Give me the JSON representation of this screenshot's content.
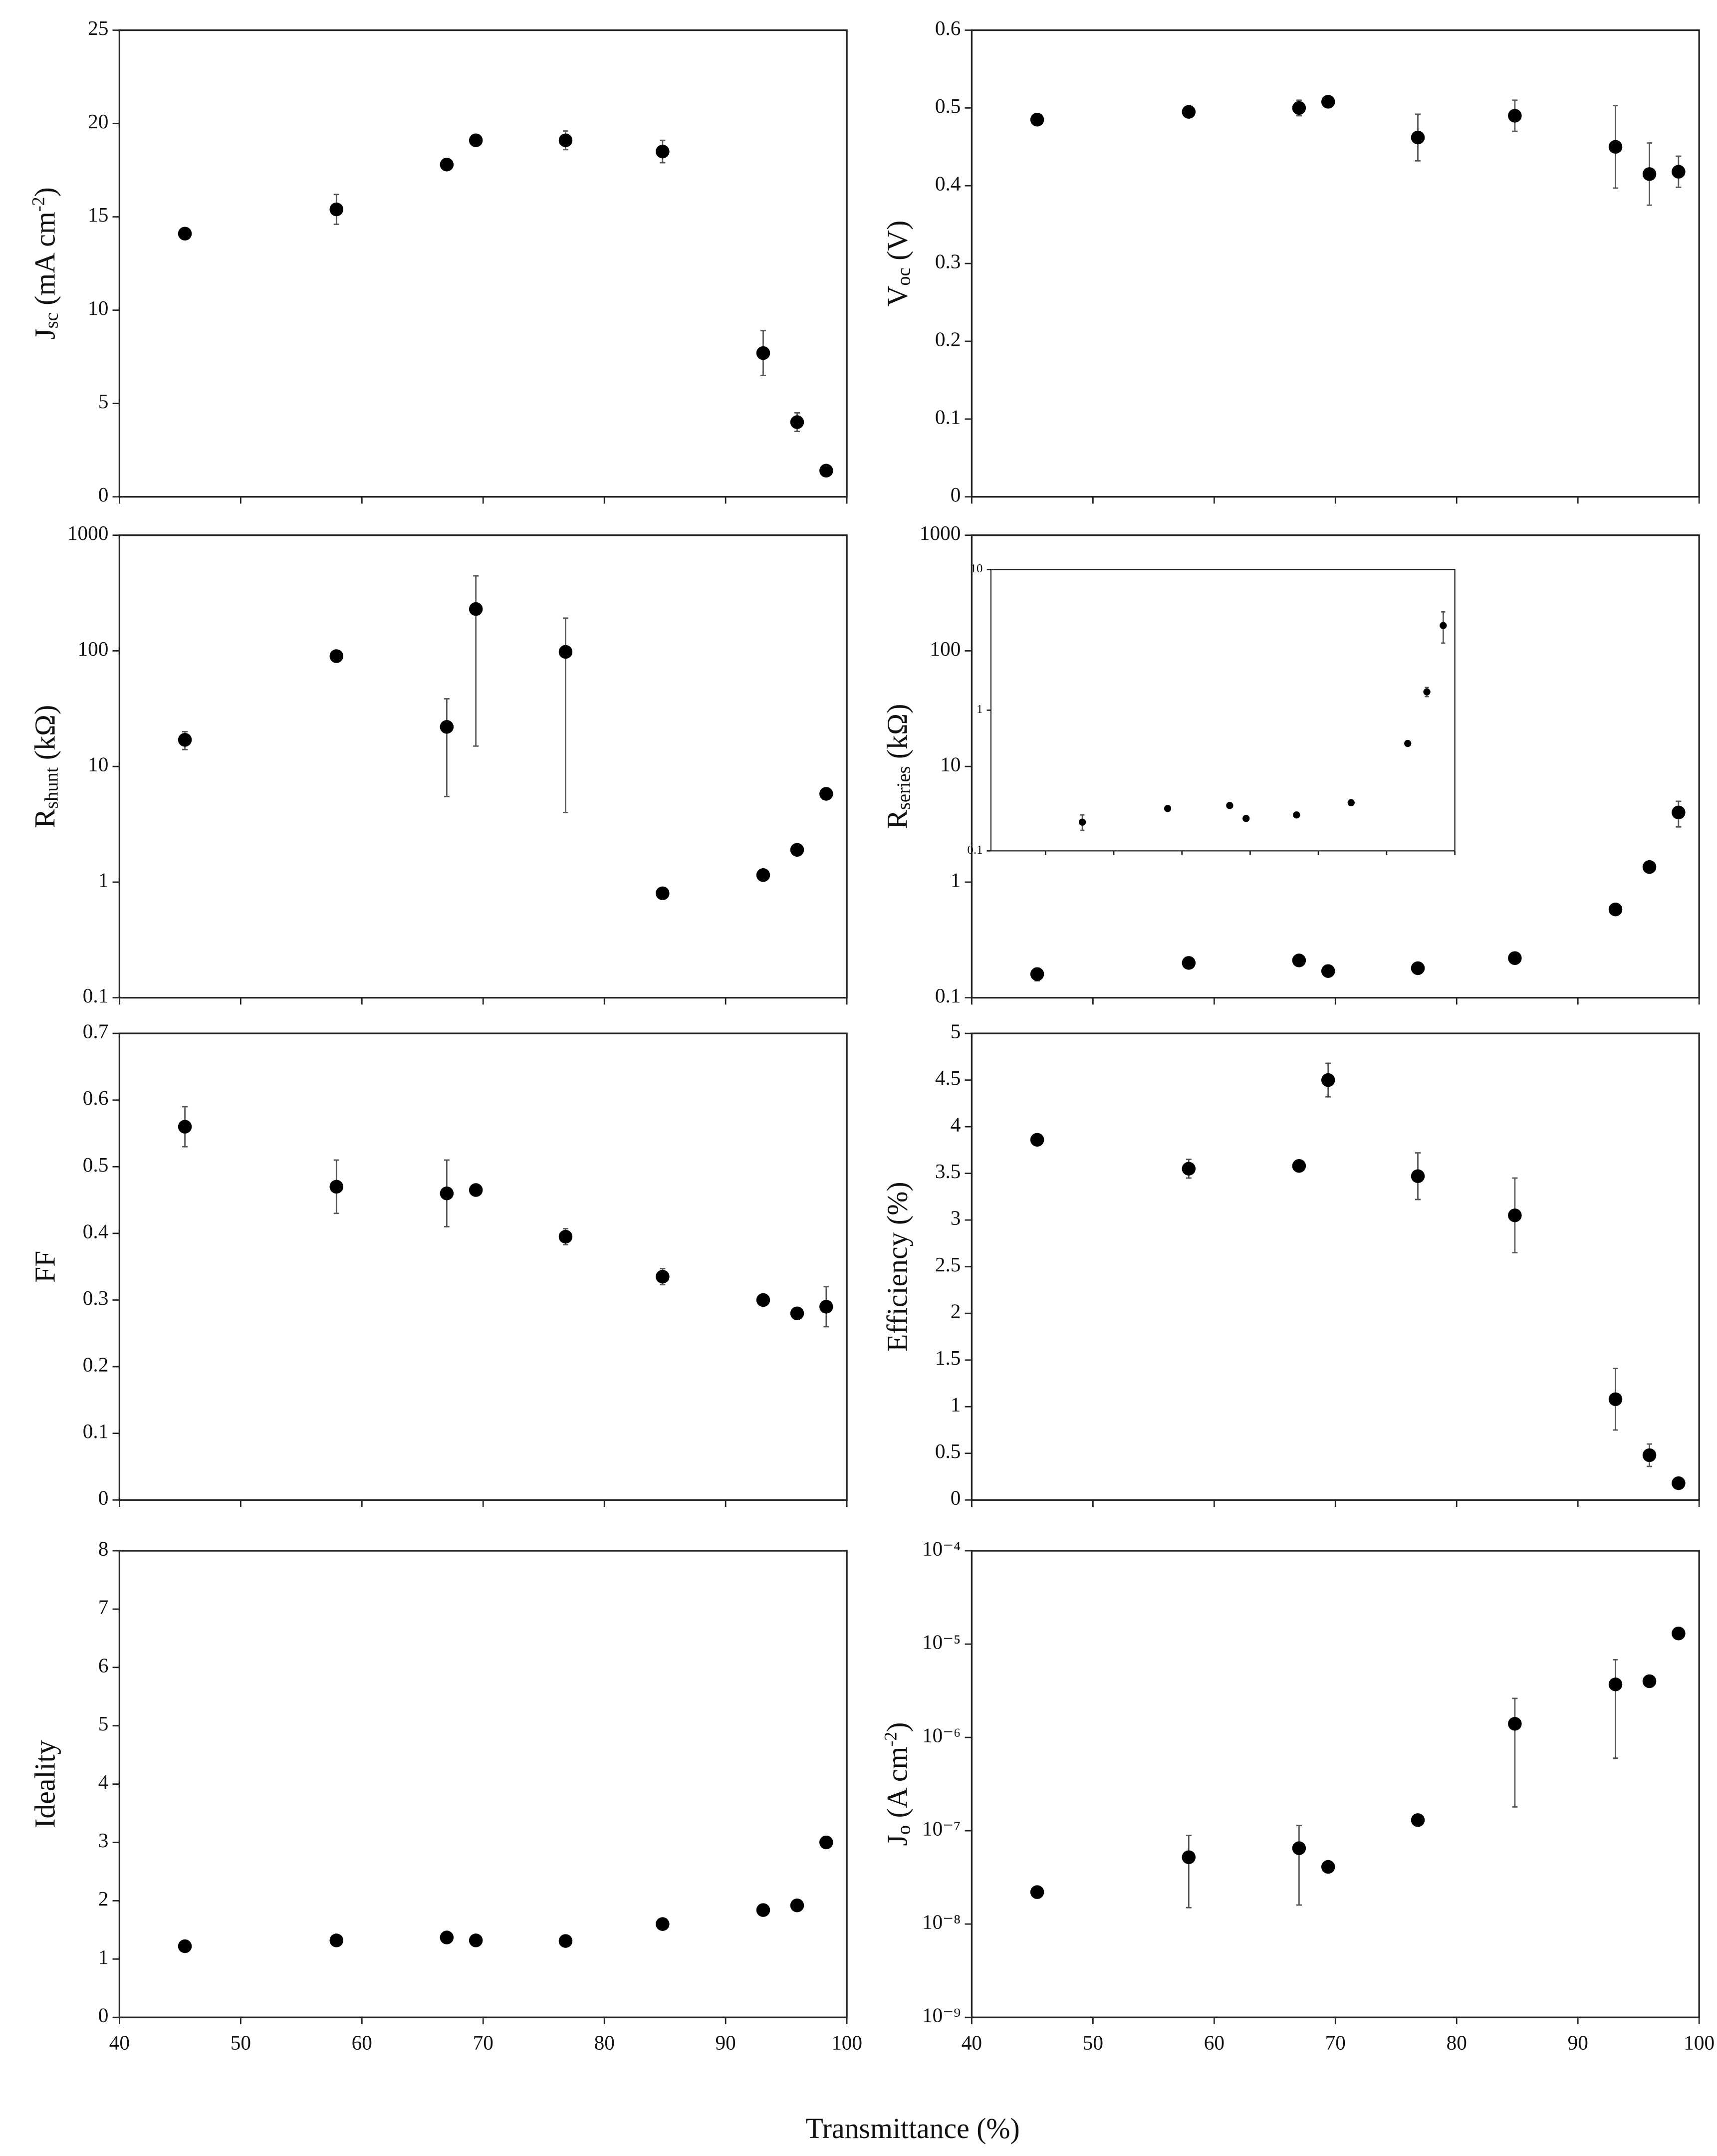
{
  "xlabel": "Transmittance (%)",
  "chart_data": [
    {
      "type": "scatter",
      "ylabel": [
        {
          "text": "J"
        },
        {
          "text": "sc",
          "sub": true
        },
        {
          "text": " (mA cm"
        },
        {
          "text": "-2",
          "sup": true
        },
        {
          "text": ")"
        }
      ],
      "x": [
        45.4,
        57.9,
        67.0,
        69.4,
        76.8,
        84.8,
        93.1,
        95.9,
        98.3
      ],
      "values": [
        14.1,
        15.4,
        17.8,
        19.1,
        19.1,
        18.5,
        7.7,
        4.0,
        1.4
      ],
      "errors": [
        null,
        0.8,
        null,
        0.3,
        0.5,
        0.6,
        1.2,
        0.5,
        0.2
      ],
      "xlim": [
        40,
        100
      ],
      "xticks": [
        40,
        50,
        60,
        70,
        80,
        90,
        100
      ],
      "ylim": [
        0,
        25
      ],
      "yticks": [
        0,
        5,
        10,
        15,
        20,
        25
      ],
      "color": "#000000"
    },
    {
      "type": "scatter",
      "ylabel": [
        {
          "text": "V"
        },
        {
          "text": "oc",
          "sub": true
        },
        {
          "text": " (V)"
        }
      ],
      "x": [
        45.4,
        57.9,
        67.0,
        69.4,
        76.8,
        84.8,
        93.1,
        95.9,
        98.3
      ],
      "values": [
        0.485,
        0.495,
        0.5,
        0.508,
        0.462,
        0.49,
        0.45,
        0.415,
        0.418
      ],
      "errors": [
        null,
        null,
        0.01,
        null,
        0.03,
        0.02,
        0.053,
        0.04,
        0.02
      ],
      "xlim": [
        40,
        100
      ],
      "xticks": [
        40,
        50,
        60,
        70,
        80,
        90,
        100
      ],
      "ylim": [
        0,
        0.6
      ],
      "yticks": [
        0,
        0.1,
        0.2,
        0.3,
        0.4,
        0.5,
        0.6
      ],
      "color": "#000000"
    },
    {
      "type": "scatter",
      "ylabel": [
        {
          "text": "R"
        },
        {
          "text": "shunt",
          "sub": true
        },
        {
          "text": " (kΩ)"
        }
      ],
      "x": [
        45.4,
        57.9,
        67.0,
        69.4,
        76.8,
        84.8,
        93.1,
        95.9,
        98.3
      ],
      "values": [
        17,
        90,
        22,
        230,
        98,
        0.8,
        1.15,
        1.9,
        5.8
      ],
      "errors": [
        3,
        10,
        16.5,
        215,
        94,
        null,
        null,
        null,
        null
      ],
      "xlim": [
        40,
        100
      ],
      "xticks": [
        40,
        50,
        60,
        70,
        80,
        90,
        100
      ],
      "ylim": [
        0.1,
        1000
      ],
      "yticks": [
        0.1,
        1,
        10,
        100,
        1000
      ],
      "log_y": true,
      "color": "#000000"
    },
    {
      "type": "scatter",
      "ylabel": [
        {
          "text": "R"
        },
        {
          "text": "series",
          "sub": true
        },
        {
          "text": " (kΩ)"
        }
      ],
      "x": [
        45.4,
        57.9,
        67.0,
        69.4,
        76.8,
        84.8,
        93.1,
        95.9,
        98.3
      ],
      "values": [
        0.16,
        0.2,
        0.21,
        0.17,
        0.18,
        0.22,
        0.58,
        1.35,
        4.0
      ],
      "errors": [
        0.02,
        null,
        null,
        null,
        null,
        null,
        null,
        0.1,
        1.0
      ],
      "xlim": [
        40,
        100
      ],
      "xticks": [
        40,
        50,
        60,
        70,
        80,
        90,
        100
      ],
      "ylim": [
        0.1,
        1000
      ],
      "yticks": [
        0.1,
        1,
        10,
        100,
        1000
      ],
      "log_y": true,
      "color": "#000000",
      "inset": {
        "xlim": [
          32,
          100
        ],
        "xticks": [
          40,
          50,
          60,
          70,
          80,
          90,
          100
        ],
        "ylim": [
          0.1,
          10
        ],
        "yticks": [
          0.1,
          1,
          10
        ],
        "log_y": true
      }
    },
    {
      "type": "scatter",
      "ylabel": [
        {
          "text": "FF"
        }
      ],
      "x": [
        45.4,
        57.9,
        67.0,
        69.4,
        76.8,
        84.8,
        93.1,
        95.9,
        98.3
      ],
      "values": [
        0.56,
        0.47,
        0.46,
        0.465,
        0.395,
        0.335,
        0.3,
        0.28,
        0.29
      ],
      "errors": [
        0.03,
        0.04,
        0.05,
        null,
        0.012,
        0.012,
        null,
        null,
        0.03
      ],
      "xlim": [
        40,
        100
      ],
      "xticks": [
        40,
        50,
        60,
        70,
        80,
        90,
        100
      ],
      "ylim": [
        0,
        0.7
      ],
      "yticks": [
        0,
        0.1,
        0.2,
        0.3,
        0.4,
        0.5,
        0.6,
        0.7
      ],
      "color": "#000000"
    },
    {
      "type": "scatter",
      "ylabel": [
        {
          "text": "Efficiency (%)"
        }
      ],
      "x": [
        45.4,
        57.9,
        67.0,
        69.4,
        76.8,
        84.8,
        93.1,
        95.9,
        98.3
      ],
      "values": [
        3.86,
        3.55,
        3.58,
        4.5,
        3.47,
        3.05,
        1.08,
        0.48,
        0.18
      ],
      "errors": [
        null,
        0.1,
        null,
        0.18,
        0.25,
        0.4,
        0.33,
        0.12,
        null
      ],
      "xlim": [
        40,
        100
      ],
      "xticks": [
        40,
        50,
        60,
        70,
        80,
        90,
        100
      ],
      "ylim": [
        0,
        5
      ],
      "yticks": [
        0,
        0.5,
        1,
        1.5,
        2,
        2.5,
        3,
        3.5,
        4,
        4.5,
        5
      ],
      "color": "#000000"
    },
    {
      "type": "scatter",
      "ylabel": [
        {
          "text": "Ideality"
        }
      ],
      "x": [
        45.4,
        57.9,
        67.0,
        69.4,
        76.8,
        84.8,
        93.1,
        95.9,
        98.3
      ],
      "values": [
        1.22,
        1.32,
        1.37,
        1.32,
        1.31,
        1.6,
        1.84,
        1.92,
        3.0
      ],
      "errors": [
        null,
        null,
        null,
        null,
        null,
        null,
        null,
        null,
        null
      ],
      "xlim": [
        40,
        100
      ],
      "xticks": [
        40,
        50,
        60,
        70,
        80,
        90,
        100
      ],
      "ylim": [
        0,
        8
      ],
      "yticks": [
        0,
        1,
        2,
        3,
        4,
        5,
        6,
        7,
        8
      ],
      "color": "#000000"
    },
    {
      "type": "scatter",
      "ylabel": [
        {
          "text": "J"
        },
        {
          "text": "o",
          "sub": true
        },
        {
          "text": " (A cm"
        },
        {
          "text": "-2",
          "sup": true
        },
        {
          "text": ")"
        }
      ],
      "x": [
        45.4,
        57.9,
        67.0,
        69.4,
        76.8,
        84.8,
        93.1,
        95.9,
        98.3
      ],
      "values": [
        2.2e-08,
        5.2e-08,
        6.5e-08,
        4.1e-08,
        1.3e-07,
        1.4e-06,
        3.7e-06,
        4e-06,
        1.3e-05
      ],
      "errors": [
        3e-09,
        3.7e-08,
        4.9e-08,
        null,
        null,
        1.22e-06,
        3.1e-06,
        null,
        null
      ],
      "xlim": [
        40,
        100
      ],
      "xticks": [
        40,
        50,
        60,
        70,
        80,
        90,
        100
      ],
      "ylim": [
        1e-09,
        0.0001
      ],
      "yticks": [
        {
          "value": 1e-09,
          "label": "10⁻⁹"
        },
        {
          "value": 1e-08,
          "label": "10⁻⁸"
        },
        {
          "value": 1e-07,
          "label": "10⁻⁷"
        },
        {
          "value": 1e-06,
          "label": "10⁻⁶"
        },
        {
          "value": 1e-05,
          "label": "10⁻⁵"
        },
        {
          "value": 0.0001,
          "label": "10⁻⁴"
        }
      ],
      "log_y": true,
      "color": "#000000"
    }
  ]
}
